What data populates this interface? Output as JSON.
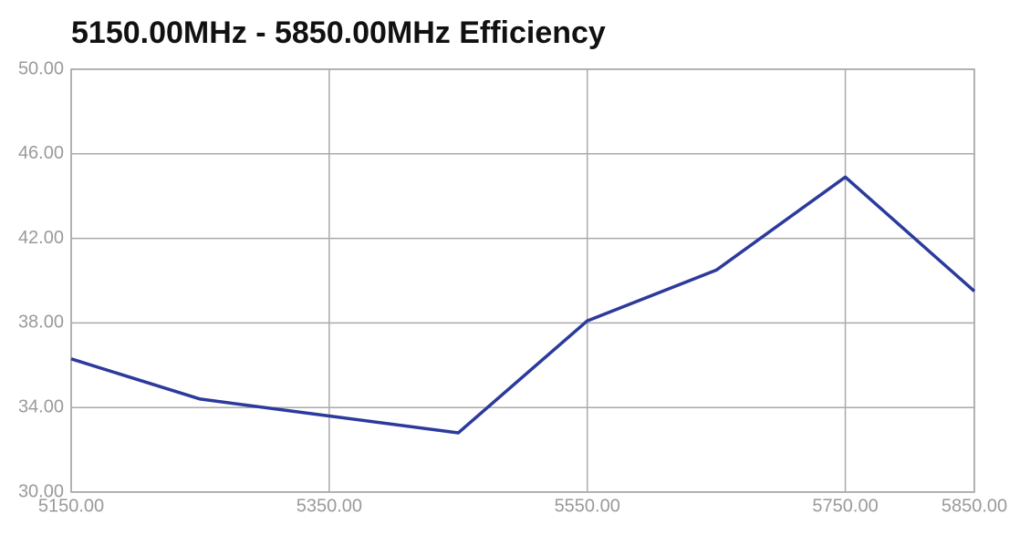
{
  "chart_data": {
    "type": "line",
    "title": "5150.00MHz - 5850.00MHz Efficiency",
    "x": [
      5150,
      5250,
      5350,
      5450,
      5550,
      5650,
      5750,
      5850
    ],
    "series": [
      {
        "color": "#2b3a9c",
        "values": [
          36.3,
          34.4,
          33.6,
          32.8,
          38.1,
          40.5,
          44.9,
          39.5
        ]
      }
    ],
    "xlim": [
      5150,
      5850
    ],
    "xticks": [
      {
        "value": 5150,
        "label": "5150.00"
      },
      {
        "value": 5350,
        "label": "5350.00"
      },
      {
        "value": 5550,
        "label": "5550.00"
      },
      {
        "value": 5750,
        "label": "5750.00"
      },
      {
        "value": 5850,
        "label": "5850.00"
      }
    ],
    "ylim": [
      30,
      50
    ],
    "yticks": [
      {
        "value": 30,
        "label": "30.00"
      },
      {
        "value": 34,
        "label": "34.00"
      },
      {
        "value": 38,
        "label": "38.00"
      },
      {
        "value": 42,
        "label": "42.00"
      },
      {
        "value": 46,
        "label": "46.00"
      },
      {
        "value": 50,
        "label": "50.00"
      }
    ],
    "grid": true
  }
}
